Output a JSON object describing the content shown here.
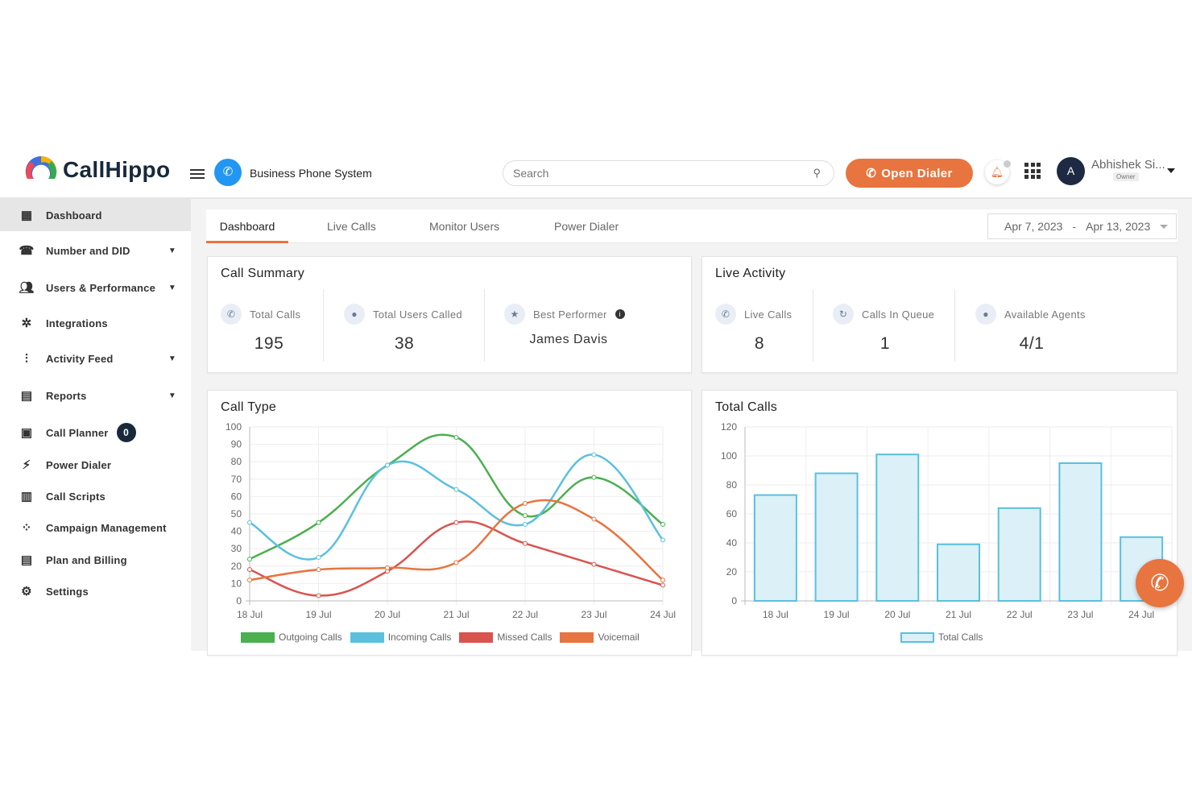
{
  "header": {
    "brand": "CallHippo",
    "workspace": "Business Phone System",
    "search_placeholder": "Search",
    "open_dialer": "Open Dialer",
    "user_initial": "A",
    "user_name": "Abhishek Si...",
    "user_role": "Owner"
  },
  "sidebar": {
    "items": [
      {
        "label": "Dashboard",
        "icon": "dashboard-icon",
        "active": true
      },
      {
        "label": "Number and DID",
        "icon": "phone-keypad-icon",
        "expandable": true
      },
      {
        "label": "Users & Performance",
        "icon": "users-icon",
        "expandable": true
      },
      {
        "label": "Integrations",
        "icon": "integrations-icon"
      },
      {
        "label": "Activity Feed",
        "icon": "activity-icon",
        "expandable": true
      },
      {
        "label": "Reports",
        "icon": "report-icon",
        "expandable": true
      },
      {
        "label": "Call Planner",
        "icon": "calendar-icon",
        "badge": "0"
      },
      {
        "label": "Power Dialer",
        "icon": "bolt-icon"
      },
      {
        "label": "Call Scripts",
        "icon": "script-icon"
      },
      {
        "label": "Campaign Management",
        "icon": "campaign-icon"
      },
      {
        "label": "Plan and Billing",
        "icon": "billing-icon"
      },
      {
        "label": "Settings",
        "icon": "gear-icon"
      }
    ]
  },
  "tabs": [
    "Dashboard",
    "Live Calls",
    "Monitor Users",
    "Power Dialer"
  ],
  "date_range": {
    "start": "Apr 7, 2023",
    "sep": "-",
    "end": "Apr 13, 2023"
  },
  "call_summary": {
    "title": "Call Summary",
    "total_calls_label": "Total Calls",
    "total_calls": "195",
    "users_called_label": "Total Users Called",
    "users_called": "38",
    "best_label": "Best Performer",
    "best": "James Davis"
  },
  "live_activity": {
    "title": "Live Activity",
    "live_calls_label": "Live Calls",
    "live_calls": "8",
    "queue_label": "Calls In Queue",
    "queue": "1",
    "agents_label": "Available Agents",
    "agents": "4/1"
  },
  "colors": {
    "accent": "#e8743f",
    "brand_blue": "#2196f3",
    "bar": "#5bc0de"
  },
  "chart_data": [
    {
      "type": "line",
      "title": "Call Type",
      "categories": [
        "18 Jul",
        "19 Jul",
        "20 Jul",
        "21 Jul",
        "22 Jul",
        "23 Jul",
        "24 Jul"
      ],
      "ylim": [
        0,
        100
      ],
      "yticks": [
        "0",
        "10",
        "20",
        "30",
        "40",
        "50",
        "60",
        "70",
        "80",
        "90",
        "100"
      ],
      "grid": true,
      "legend": "bottom",
      "series": [
        {
          "name": "Outgoing Calls",
          "color": "#4caf50",
          "values": [
            24,
            45,
            78,
            94,
            49,
            71,
            44
          ]
        },
        {
          "name": "Incoming Calls",
          "color": "#5bc0de",
          "values": [
            45,
            25,
            78,
            64,
            44,
            84,
            35
          ]
        },
        {
          "name": "Missed Calls",
          "color": "#d9534f",
          "values": [
            18,
            3,
            17,
            45,
            33,
            21,
            9
          ]
        },
        {
          "name": "Voicemail",
          "color": "#e8743f",
          "values": [
            12,
            18,
            19,
            22,
            56,
            47,
            12
          ]
        }
      ]
    },
    {
      "type": "bar",
      "title": "Total Calls",
      "categories": [
        "18 Jul",
        "19 Jul",
        "20 Jul",
        "21 Jul",
        "22 Jul",
        "23 Jul",
        "24 Jul"
      ],
      "ylim": [
        0,
        120
      ],
      "yticks": [
        "0",
        "20",
        "40",
        "60",
        "80",
        "100",
        "120"
      ],
      "grid": true,
      "legend": "bottom",
      "series": [
        {
          "name": "Total Calls",
          "color": "#5bc0de",
          "values": [
            73,
            88,
            101,
            39,
            64,
            95,
            44
          ]
        }
      ]
    }
  ]
}
